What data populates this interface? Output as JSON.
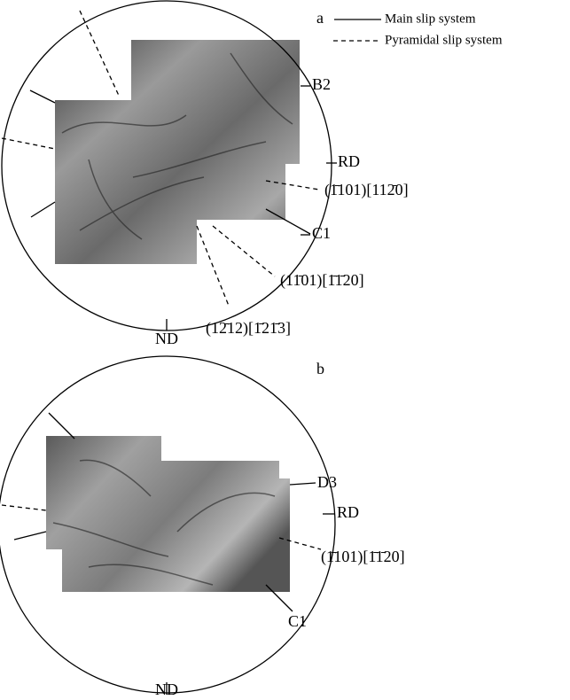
{
  "panel_a": {
    "label": "a",
    "legend": {
      "solid": "Main slip system",
      "dashed": "Pyramidal slip system"
    },
    "directions": [
      "B2",
      "RD",
      "C1",
      "ND"
    ],
    "slip_systems": [
      "(1̄101)[112̄0]",
      "(11̄01)[1̄1̄20]",
      "(12̄12)[1̄21̄3]"
    ]
  },
  "panel_b": {
    "label": "b",
    "directions": [
      "D3",
      "RD",
      "C1",
      "ND"
    ],
    "slip_systems": [
      "(1̄101)[1̄1̄20]"
    ]
  }
}
